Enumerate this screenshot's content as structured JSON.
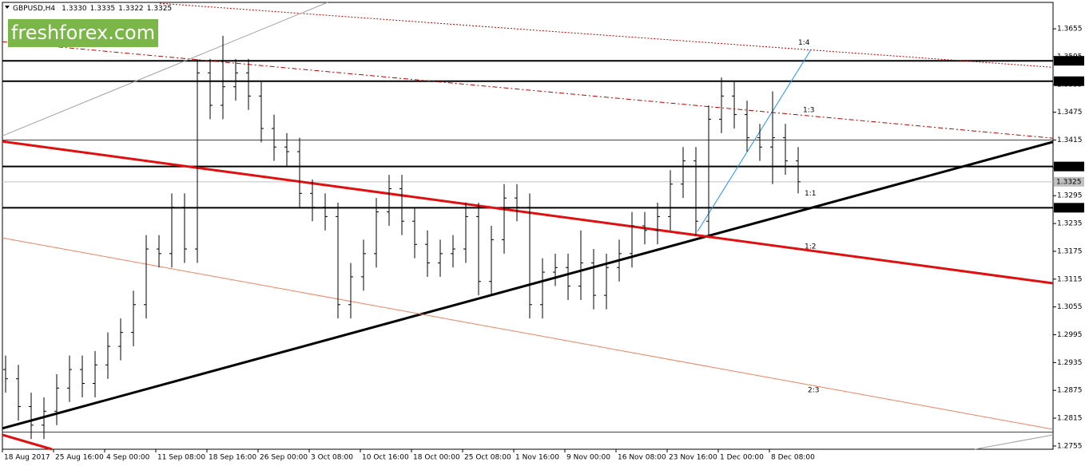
{
  "chart_data": {
    "type": "ohlc",
    "header": [
      "GBPUSD,H4",
      "1.3330",
      "1.3335",
      "1.3322",
      "1.3325"
    ],
    "watermark": "freshforex.com",
    "bar_color": "#000000",
    "x": [
      1,
      5,
      9,
      13,
      17,
      21,
      25,
      29,
      33,
      37,
      41,
      45,
      49,
      53,
      57,
      61,
      65,
      69,
      73,
      77,
      81,
      85,
      89,
      93,
      97,
      101,
      105,
      109,
      113,
      117,
      121,
      125,
      129,
      133,
      137,
      141,
      145,
      149,
      153,
      157,
      161,
      165,
      169,
      173,
      177,
      181,
      185,
      189,
      193,
      197,
      201,
      205,
      209,
      213,
      217,
      221,
      225,
      229,
      233,
      237,
      241,
      245,
      249
    ],
    "open": [
      1.292,
      1.29,
      1.284,
      1.28,
      1.283,
      1.288,
      1.292,
      1.289,
      1.293,
      1.297,
      1.3,
      1.306,
      1.318,
      1.317,
      1.327,
      1.318,
      1.356,
      1.349,
      1.353,
      1.356,
      1.351,
      1.344,
      1.34,
      1.339,
      1.33,
      1.327,
      1.325,
      1.306,
      1.312,
      1.317,
      1.326,
      1.331,
      1.324,
      1.319,
      1.315,
      1.317,
      1.318,
      1.325,
      1.311,
      1.32,
      1.329,
      1.327,
      1.306,
      1.313,
      1.314,
      1.31,
      1.315,
      1.308,
      1.314,
      1.317,
      1.323,
      1.322,
      1.325,
      1.332,
      1.337,
      1.324,
      1.346,
      1.351,
      1.347,
      1.342,
      1.34,
      1.342,
      1.337
    ],
    "high": [
      1.295,
      1.293,
      1.287,
      1.286,
      1.291,
      1.295,
      1.295,
      1.296,
      1.3,
      1.303,
      1.309,
      1.321,
      1.321,
      1.33,
      1.33,
      1.359,
      1.359,
      1.364,
      1.359,
      1.359,
      1.354,
      1.347,
      1.343,
      1.342,
      1.333,
      1.33,
      1.328,
      1.315,
      1.32,
      1.329,
      1.334,
      1.334,
      1.327,
      1.322,
      1.32,
      1.321,
      1.328,
      1.328,
      1.323,
      1.332,
      1.332,
      1.33,
      1.316,
      1.317,
      1.317,
      1.322,
      1.318,
      1.317,
      1.32,
      1.326,
      1.326,
      1.328,
      1.335,
      1.34,
      1.34,
      1.349,
      1.355,
      1.354,
      1.35,
      1.345,
      1.352,
      1.345,
      1.34
    ],
    "low": [
      1.287,
      1.281,
      1.277,
      1.277,
      1.28,
      1.285,
      1.286,
      1.286,
      1.29,
      1.294,
      1.297,
      1.303,
      1.314,
      1.314,
      1.315,
      1.315,
      1.346,
      1.346,
      1.35,
      1.348,
      1.341,
      1.337,
      1.336,
      1.327,
      1.324,
      1.322,
      1.303,
      1.303,
      1.309,
      1.314,
      1.323,
      1.321,
      1.316,
      1.312,
      1.312,
      1.314,
      1.315,
      1.308,
      1.308,
      1.317,
      1.324,
      1.303,
      1.303,
      1.31,
      1.307,
      1.307,
      1.305,
      1.305,
      1.311,
      1.314,
      1.319,
      1.319,
      1.322,
      1.329,
      1.321,
      1.321,
      1.343,
      1.344,
      1.339,
      1.337,
      1.332,
      1.334,
      1.33
    ],
    "close": [
      1.29,
      1.284,
      1.28,
      1.283,
      1.288,
      1.292,
      1.289,
      1.293,
      1.297,
      1.3,
      1.306,
      1.318,
      1.317,
      1.327,
      1.318,
      1.356,
      1.349,
      1.353,
      1.356,
      1.351,
      1.344,
      1.34,
      1.339,
      1.33,
      1.327,
      1.325,
      1.306,
      1.312,
      1.317,
      1.326,
      1.331,
      1.324,
      1.319,
      1.315,
      1.317,
      1.318,
      1.325,
      1.311,
      1.32,
      1.329,
      1.327,
      1.306,
      1.313,
      1.314,
      1.31,
      1.315,
      1.308,
      1.314,
      1.317,
      1.323,
      1.322,
      1.325,
      1.332,
      1.337,
      1.324,
      1.346,
      1.351,
      1.347,
      1.342,
      1.34,
      1.342,
      1.337,
      1.3325
    ],
    "xlim": [
      0,
      328.75
    ],
    "ylim": [
      1.2748,
      1.3712
    ],
    "yticks": [
      1.2755,
      1.2815,
      1.2875,
      1.2935,
      1.2995,
      1.3055,
      1.3115,
      1.3175,
      1.3235,
      1.3295,
      1.3355,
      1.3415,
      1.3475,
      1.3535,
      1.3595,
      1.3655
    ],
    "xticks": [
      {
        "value": 0,
        "label": "18 Aug 2017"
      },
      {
        "value": 16,
        "label": "25 Aug 16:00"
      },
      {
        "value": 32,
        "label": "4 Sep 00:00"
      },
      {
        "value": 48,
        "label": "11 Sep 08:00"
      },
      {
        "value": 64,
        "label": "18 Sep 16:00"
      },
      {
        "value": 80,
        "label": "26 Sep 00:00"
      },
      {
        "value": 96,
        "label": "3 Oct 08:00"
      },
      {
        "value": 112,
        "label": "10 Oct 16:00"
      },
      {
        "value": 128,
        "label": "18 Oct 00:00"
      },
      {
        "value": 144,
        "label": "25 Oct 08:00"
      },
      {
        "value": 160,
        "label": "1 Nov 16:00"
      },
      {
        "value": 176,
        "label": "9 Nov 00:00"
      },
      {
        "value": 192,
        "label": "16 Nov 08:00"
      },
      {
        "value": 208,
        "label": "23 Nov 16:00"
      },
      {
        "value": 224,
        "label": "1 Dec 00:00"
      },
      {
        "value": 240,
        "label": "8 Dec 08:00"
      }
    ],
    "levels": [
      {
        "value": 1.3586,
        "color": "#000000",
        "width": 2,
        "label_bg": "#000000",
        "label_fg": "#ffffff"
      },
      {
        "value": 1.3542,
        "color": "#000000",
        "width": 2,
        "label_bg": "#000000",
        "label_fg": "#ffffff"
      },
      {
        "value": 1.3358,
        "color": "#000000",
        "width": 2,
        "label_bg": "#000000",
        "label_fg": "#ffffff"
      },
      {
        "value": 1.3269,
        "color": "#000000",
        "width": 2,
        "label_bg": "#000000",
        "label_fg": "#ffffff"
      },
      {
        "value": 1.3325,
        "color": "#c0c0c0",
        "width": 1,
        "label_bg": "#c0c0c0",
        "label_fg": "#000000"
      },
      {
        "value": 1.3415,
        "color": "#1f3fbf",
        "width": 1
      },
      {
        "value": 1.2785,
        "color": "#1f3fbf",
        "width": 1
      }
    ],
    "trend_lines": [
      {
        "x": [
          0,
          328.75
        ],
        "y": [
          1.2793,
          1.3411
        ],
        "color": "#000000",
        "width": 3
      },
      {
        "x": [
          0,
          328.75
        ],
        "y": [
          1.3412,
          1.3106
        ],
        "color": "#e01010",
        "width": 3
      },
      {
        "x": [
          0,
          15.5
        ],
        "y": [
          1.2779,
          1.2748
        ],
        "color": "#e01010",
        "width": 3
      },
      {
        "x": [
          0,
          328.75
        ],
        "y": [
          1.3204,
          1.2791
        ],
        "color": "#f08060",
        "width": 1
      },
      {
        "x": [
          49.25,
          328.75
        ],
        "y": [
          1.371,
          1.3572
        ],
        "color": "#c00000",
        "width": 1,
        "dash": "2,2"
      },
      {
        "x": [
          0,
          328.75
        ],
        "y": [
          1.3627,
          1.3419
        ],
        "color": "#c00000",
        "width": 1,
        "dash": "6,3,2,3"
      },
      {
        "x": [
          0,
          101.75
        ],
        "y": [
          1.3424,
          1.3712
        ],
        "color": "#a0a0a0",
        "width": 1
      },
      {
        "x": [
          304.25,
          328.75
        ],
        "y": [
          1.2748,
          1.2779
        ],
        "color": "#a0a0a0",
        "width": 1
      },
      {
        "x": [
          217.5,
          253
        ],
        "y": [
          1.3218,
          1.361
        ],
        "color": "#1e90ff",
        "width": 1
      }
    ],
    "annotations": [
      {
        "text": "1:4",
        "x": 249,
        "y": 1.3625,
        "color": "#c00000"
      },
      {
        "text": "1:3",
        "x": 250.5,
        "y": 1.348,
        "color": "#c00000"
      },
      {
        "text": "1:1",
        "x": 251,
        "y": 1.33,
        "color": "#000000"
      },
      {
        "text": "1:2",
        "x": 251,
        "y": 1.3185,
        "color": "#c00000"
      },
      {
        "text": "2:3",
        "x": 252,
        "y": 1.2875,
        "color": "#c00000"
      }
    ]
  }
}
